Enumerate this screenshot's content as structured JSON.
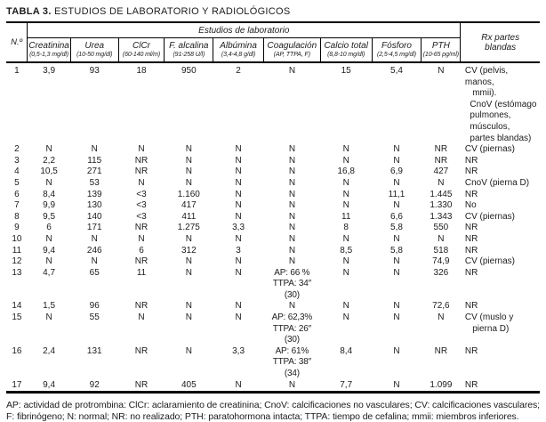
{
  "title": {
    "label": "TABLA 3.",
    "text": "ESTUDIOS DE LABORATORIO Y RADIOLÓGICOS"
  },
  "table": {
    "row_number_header": "N.º",
    "group_header": "Estudios de laboratorio",
    "rx_header": "Rx partes\nblandas",
    "columns": [
      {
        "name": "Creatinina",
        "range": "(0,5-1,3 mg/dl)"
      },
      {
        "name": "Urea",
        "range": "(10-50 mg/dl)"
      },
      {
        "name": "ClCr",
        "range": "(60-140 ml/m)"
      },
      {
        "name": "F. alcalina",
        "range": "(91-258 U/l)"
      },
      {
        "name": "Albúmina",
        "range": "(3,4-4,8 g/dl)"
      },
      {
        "name": "Coagulación",
        "range": "(AP, TTPA, F)"
      },
      {
        "name": "Calcio total",
        "range": "(8,8-10 mg/dl)"
      },
      {
        "name": "Fósforo",
        "range": "(2,5-4,5 mg/dl)"
      },
      {
        "name": "PTH",
        "range": "(10-65 pg/ml)"
      }
    ],
    "rows": [
      {
        "n": "1",
        "cells": [
          "3,9",
          "93",
          "18",
          "950",
          "2",
          "N",
          "15",
          "5,4",
          "N"
        ],
        "rx": "CV (pelvis, manos,\n   mmii).\n  CnoV (estómago\n  pulmones,\n  músculos,\n  partes blandas)"
      },
      {
        "n": "2",
        "cells": [
          "N",
          "N",
          "N",
          "N",
          "N",
          "N",
          "N",
          "N",
          "NR"
        ],
        "rx": "CV (piernas)"
      },
      {
        "n": "3",
        "cells": [
          "2,2",
          "115",
          "NR",
          "N",
          "N",
          "N",
          "N",
          "N",
          "NR"
        ],
        "rx": "NR"
      },
      {
        "n": "4",
        "cells": [
          "10,5",
          "271",
          "NR",
          "N",
          "N",
          "N",
          "16,8",
          "6,9",
          "427"
        ],
        "rx": "NR"
      },
      {
        "n": "5",
        "cells": [
          "N",
          "53",
          "N",
          "N",
          "N",
          "N",
          "N",
          "N",
          "N"
        ],
        "rx": "CnoV (pierna D)"
      },
      {
        "n": "6",
        "cells": [
          "8,4",
          "139",
          "<3",
          "1.160",
          "N",
          "N",
          "N",
          "11,1",
          "1.445"
        ],
        "rx": "NR"
      },
      {
        "n": "7",
        "cells": [
          "9,9",
          "130",
          "<3",
          "417",
          "N",
          "N",
          "N",
          "N",
          "1.330"
        ],
        "rx": "No"
      },
      {
        "n": "8",
        "cells": [
          "9,5",
          "140",
          "<3",
          "411",
          "N",
          "N",
          "11",
          "6,6",
          "1.343"
        ],
        "rx": "CV (piernas)"
      },
      {
        "n": "9",
        "cells": [
          "6",
          "171",
          "NR",
          "1.275",
          "3,3",
          "N",
          "8",
          "5,8",
          "550"
        ],
        "rx": "NR"
      },
      {
        "n": "10",
        "cells": [
          "N",
          "N",
          "N",
          "N",
          "N",
          "N",
          "N",
          "N",
          "N"
        ],
        "rx": "NR"
      },
      {
        "n": "11",
        "cells": [
          "9,4",
          "246",
          "6",
          "312",
          "3",
          "N",
          "8,5",
          "5,8",
          "518"
        ],
        "rx": "NR"
      },
      {
        "n": "12",
        "cells": [
          "N",
          "N",
          "NR",
          "N",
          "N",
          "N",
          "N",
          "N",
          "74,9"
        ],
        "rx": "CV (piernas)"
      },
      {
        "n": "13",
        "cells": [
          "4,7",
          "65",
          "11",
          "N",
          "N",
          "AP: 66 %\nTTPA: 34″ (30)",
          "N",
          "N",
          "326"
        ],
        "rx": "NR"
      },
      {
        "n": "14",
        "cells": [
          "1,5",
          "96",
          "NR",
          "N",
          "N",
          "N",
          "N",
          "N",
          "72,6"
        ],
        "rx": "NR"
      },
      {
        "n": "15",
        "cells": [
          "N",
          "55",
          "N",
          "N",
          "N",
          "AP: 62,3%\nTTPA: 26″ (30)",
          "N",
          "N",
          "N"
        ],
        "rx": "CV (muslo y\n   pierna D)"
      },
      {
        "n": "16",
        "cells": [
          "2,4",
          "131",
          "NR",
          "N",
          "3,3",
          "AP: 61%\nTTPA: 38″ (34)",
          "8,4",
          "N",
          "NR"
        ],
        "rx": "NR"
      },
      {
        "n": "17",
        "cells": [
          "9,4",
          "92",
          "NR",
          "405",
          "N",
          "N",
          "7,7",
          "N",
          "1.099"
        ],
        "rx": "NR"
      }
    ]
  },
  "footnote": "AP: actividad de protrombina: ClCr: aclaramiento de creatinina; CnoV: calcificaciones no vasculares; CV: calcificaciones vasculares; F: fibrinógeno; N: normal; NR: no realizado; PTH: paratohormona intacta; TTPA: tiempo de cefalina; mmii: miembros inferiores."
}
